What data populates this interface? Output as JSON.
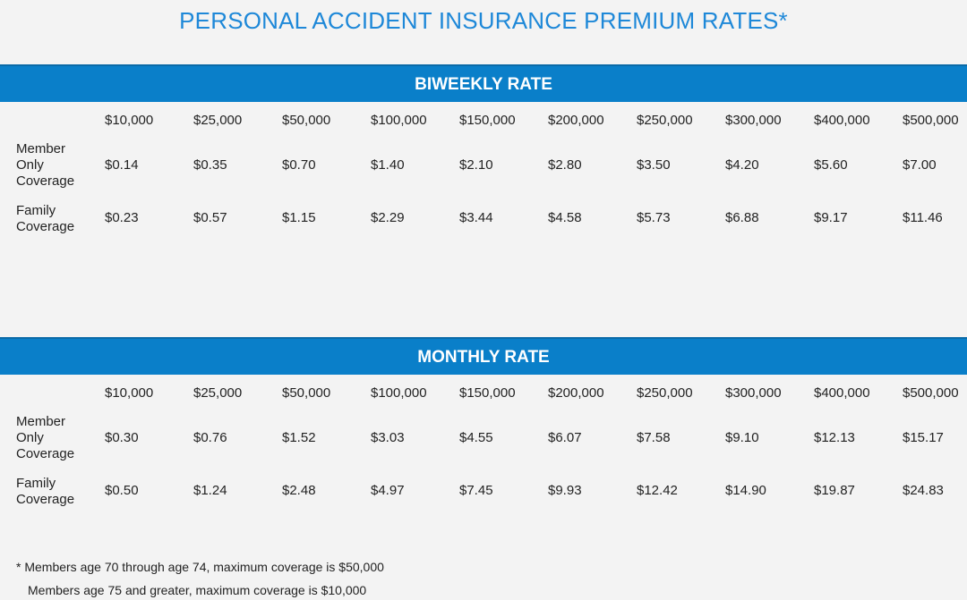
{
  "title": "PERSONAL ACCIDENT INSURANCE PREMIUM RATES*",
  "columns": [
    "$10,000",
    "$25,000",
    "$50,000",
    "$100,000",
    "$150,000",
    "$200,000",
    "$250,000",
    "$300,000",
    "$400,000",
    "$500,000"
  ],
  "biweekly": {
    "heading": "BIWEEKLY RATE",
    "member_label": "Member Only Coverage",
    "family_label": "Family Coverage",
    "member": [
      "$0.14",
      "$0.35",
      "$0.70",
      "$1.40",
      "$2.10",
      "$2.80",
      "$3.50",
      "$4.20",
      "$5.60",
      "$7.00"
    ],
    "family": [
      "$0.23",
      "$0.57",
      "$1.15",
      "$2.29",
      "$3.44",
      "$4.58",
      "$5.73",
      "$6.88",
      "$9.17",
      "$11.46"
    ]
  },
  "monthly": {
    "heading": "MONTHLY RATE",
    "member_label": "Member Only Coverage",
    "family_label": "Family Coverage",
    "member": [
      "$0.30",
      "$0.76",
      "$1.52",
      "$3.03",
      "$4.55",
      "$6.07",
      "$7.58",
      "$9.10",
      "$12.13",
      "$15.17"
    ],
    "family": [
      "$0.50",
      "$1.24",
      "$2.48",
      "$4.97",
      "$7.45",
      "$9.93",
      "$12.42",
      "$14.90",
      "$19.87",
      "$24.83"
    ]
  },
  "footnotes": [
    "* Members age 70 through age 74, maximum coverage is $50,000",
    "Members age 75 and greater, maximum coverage is $10,000"
  ]
}
